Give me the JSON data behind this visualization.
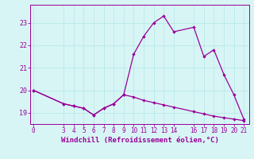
{
  "xlabel": "Windchill (Refroidissement éolien,°C)",
  "x_hours": [
    0,
    3,
    4,
    5,
    6,
    7,
    8,
    9,
    10,
    11,
    12,
    13,
    14,
    16,
    17,
    18,
    19,
    20,
    21
  ],
  "temp_line": [
    20.0,
    19.4,
    19.3,
    19.2,
    18.9,
    19.2,
    19.4,
    19.8,
    21.6,
    22.4,
    23.0,
    23.3,
    22.6,
    22.8,
    21.5,
    21.8,
    20.7,
    19.8,
    18.7
  ],
  "windchill_line": [
    20.0,
    19.4,
    19.3,
    19.2,
    18.9,
    19.2,
    19.4,
    19.8,
    19.7,
    19.55,
    19.45,
    19.35,
    19.25,
    19.05,
    18.95,
    18.85,
    18.78,
    18.72,
    18.65
  ],
  "line_color": "#990099",
  "bg_color": "#d8f5f5",
  "grid_color": "#b8e8e8",
  "ylim": [
    18.5,
    23.8
  ],
  "yticks": [
    19,
    20,
    21,
    22,
    23
  ],
  "xticks": [
    0,
    3,
    4,
    5,
    6,
    7,
    8,
    9,
    10,
    11,
    12,
    13,
    14,
    16,
    17,
    18,
    19,
    20,
    21
  ],
  "xticklabels": [
    "0",
    "3",
    "4",
    "5",
    "6",
    "7",
    "8",
    "9",
    "10",
    "11",
    "12",
    "13",
    "14",
    "16",
    "17",
    "18",
    "19",
    "20",
    "21"
  ],
  "tick_fontsize": 5.5,
  "label_fontsize": 6.5
}
